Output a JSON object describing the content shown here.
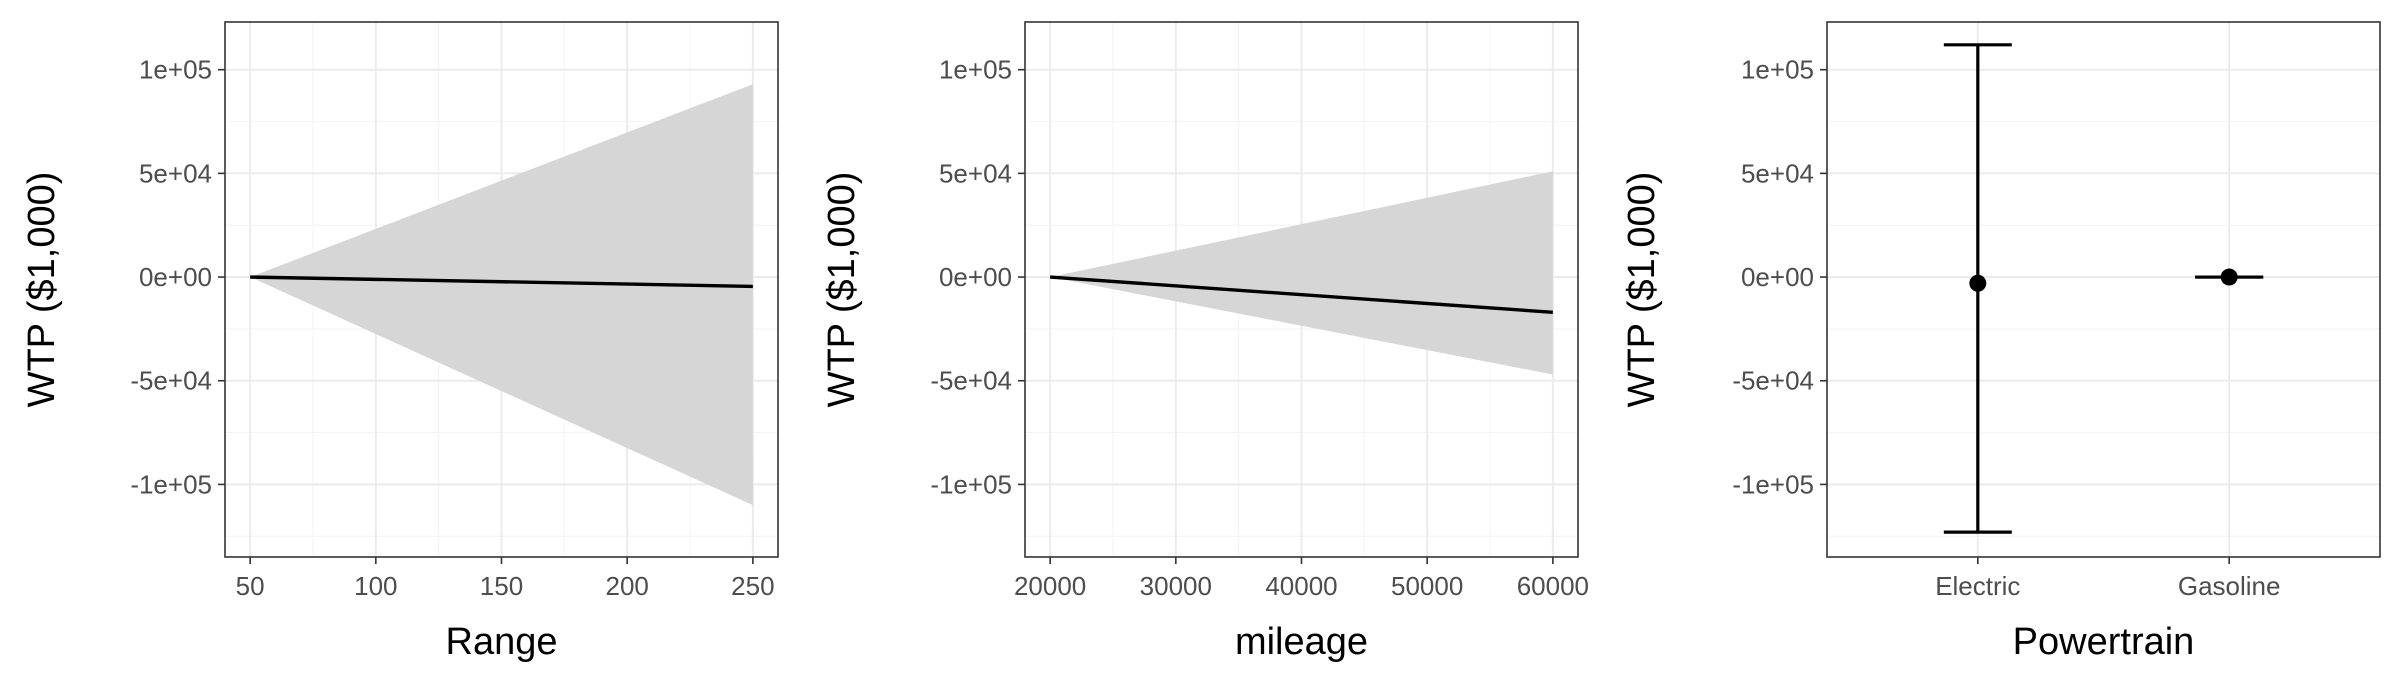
{
  "chart_data": [
    {
      "type": "line",
      "xlabel": "Range",
      "ylabel": "WTP ($1,000)",
      "xlim": [
        40,
        260
      ],
      "ylim": [
        -135000,
        123000
      ],
      "x_ticks": [
        50,
        100,
        150,
        200,
        250
      ],
      "x_tick_labels": [
        "50",
        "100",
        "150",
        "200",
        "250"
      ],
      "y_ticks": [
        -100000,
        -50000,
        0,
        50000,
        100000
      ],
      "y_tick_labels": [
        "-1e+05",
        "-5e+04",
        "0e+00",
        "5e+04",
        "1e+05"
      ],
      "grid": true,
      "series": [
        {
          "x": [
            50,
            250
          ],
          "y": [
            0,
            -4500
          ],
          "lower": [
            0,
            -110000
          ],
          "upper": [
            0,
            93000
          ]
        }
      ]
    },
    {
      "type": "line",
      "xlabel": "mileage",
      "ylabel": "WTP ($1,000)",
      "xlim": [
        18000,
        62000
      ],
      "ylim": [
        -135000,
        123000
      ],
      "x_ticks": [
        20000,
        30000,
        40000,
        50000,
        60000
      ],
      "x_tick_labels": [
        "20000",
        "30000",
        "40000",
        "50000",
        "60000"
      ],
      "y_ticks": [
        -100000,
        -50000,
        0,
        50000,
        100000
      ],
      "y_tick_labels": [
        "-1e+05",
        "-5e+04",
        "0e+00",
        "5e+04",
        "1e+05"
      ],
      "grid": true,
      "series": [
        {
          "x": [
            20000,
            60000
          ],
          "y": [
            0,
            -17000
          ],
          "lower": [
            0,
            -47000
          ],
          "upper": [
            0,
            51000
          ]
        }
      ]
    },
    {
      "type": "scatter",
      "xlabel": "Powertrain",
      "ylabel": "WTP ($1,000)",
      "ylim": [
        -135000,
        123000
      ],
      "categories": [
        "Electric",
        "Gasoline"
      ],
      "y_ticks": [
        -100000,
        -50000,
        0,
        50000,
        100000
      ],
      "y_tick_labels": [
        "-1e+05",
        "-5e+04",
        "0e+00",
        "5e+04",
        "1e+05"
      ],
      "grid": true,
      "series": [
        {
          "values": [
            -3000,
            0
          ],
          "lower": [
            -123000,
            0
          ],
          "upper": [
            112000,
            0
          ]
        }
      ]
    }
  ]
}
